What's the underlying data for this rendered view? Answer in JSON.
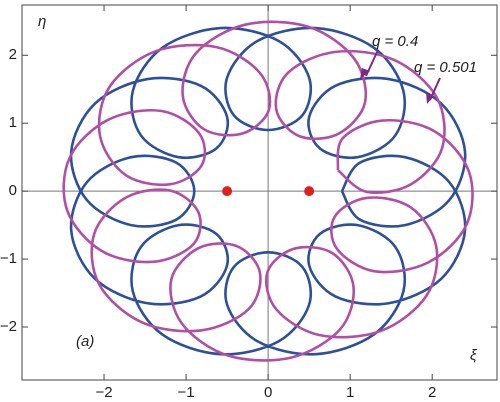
{
  "chart_data": {
    "type": "line",
    "series": [
      {
        "name": "q = 0.4",
        "color": "#2c4f9e",
        "x": [
          0.9,
          1.12,
          1.67,
          2.21,
          2.4,
          2.11,
          1.47,
          0.82,
          0.5,
          0.63,
          1.09,
          1.55,
          1.65,
          1.29,
          0.58,
          -0.13,
          -0.5,
          -0.42,
          0,
          0.42,
          0.5,
          0.13,
          -0.58,
          -1.29,
          -1.65,
          -1.55,
          -1.09,
          -0.63,
          -0.5,
          -0.82,
          -1.47,
          -2.11,
          -2.4,
          -2.21,
          -1.67,
          -1.12,
          -0.9,
          -1.12,
          -1.67,
          -2.21,
          -2.4,
          -2.11,
          -1.47,
          -0.82,
          -0.5,
          -0.63,
          -1.09,
          -1.55,
          -1.65,
          -1.29,
          -0.58,
          0.13,
          0.5,
          0.42,
          0,
          -0.42,
          -0.5,
          -0.13,
          0.58,
          1.29,
          1.65,
          1.55,
          1.09,
          0.63,
          0.5,
          0.82,
          1.47,
          2.11,
          2.4,
          2.21,
          1.67,
          1.12,
          0.9
        ],
        "y": [
          0,
          -0.42,
          -0.5,
          -0.13,
          0.58,
          1.29,
          1.65,
          1.55,
          1.09,
          0.63,
          0.5,
          0.82,
          1.47,
          2.11,
          2.4,
          2.21,
          1.67,
          1.12,
          0.9,
          1.12,
          1.67,
          2.21,
          2.4,
          2.11,
          1.47,
          0.82,
          0.5,
          0.63,
          1.09,
          1.55,
          1.65,
          1.29,
          0.58,
          -0.13,
          -0.5,
          -0.42,
          0,
          0.42,
          0.5,
          0.13,
          -0.58,
          -1.29,
          -1.65,
          -1.55,
          -1.09,
          -0.63,
          -0.5,
          -0.82,
          -1.47,
          -2.11,
          -2.4,
          -2.21,
          -1.67,
          -1.12,
          -0.9,
          -1.12,
          -1.67,
          -2.21,
          -2.4,
          -2.11,
          -1.47,
          -0.82,
          -0.5,
          -0.63,
          -1.09,
          -1.55,
          -1.65,
          -1.29,
          -0.58,
          0.13,
          0.5,
          0.42,
          0
        ]
      },
      {
        "name": "q = 0.501",
        "color": "#b24ea6",
        "x": [
          0.85,
          1.2,
          1.74,
          2.12,
          2.06,
          1.54,
          0.82,
          0.24,
          0.1,
          0.38,
          0.85,
          1.18,
          1.05,
          0.49,
          -0.28,
          -0.88,
          -1.04,
          -0.78,
          -0.31,
          0.01,
          -0.1,
          -0.63,
          -1.37,
          -1.93,
          -2.05,
          -1.74,
          -1.2,
          -0.81,
          -0.84,
          -1.3,
          -1.95,
          -2.42,
          -2.45,
          -2.03,
          -1.4,
          -0.91,
          -0.85,
          -1.2,
          -1.74,
          -2.12,
          -2.06,
          -1.54,
          -0.82,
          -0.24,
          -0.1,
          -0.38,
          -0.85,
          -1.18,
          -1.05,
          -0.49,
          0.28,
          0.88,
          1.04,
          0.78,
          0.31,
          -0.01,
          0.1,
          0.63,
          1.37,
          1.93,
          2.05,
          1.74,
          1.2,
          0.81,
          0.84,
          1.3,
          1.95,
          2.42,
          2.45,
          2.03,
          1.4,
          0.91,
          0.85
        ],
        "y": [
          0.31,
          -0.01,
          0.1,
          0.63,
          1.37,
          1.93,
          2.05,
          1.74,
          1.2,
          0.81,
          0.84,
          1.3,
          1.95,
          2.42,
          2.45,
          2.03,
          1.4,
          0.91,
          0.85,
          1.2,
          1.74,
          2.12,
          2.06,
          1.54,
          0.82,
          0.24,
          0.1,
          0.38,
          0.85,
          1.18,
          1.05,
          0.49,
          -0.28,
          -0.88,
          -1.04,
          -0.78,
          -0.31,
          0.01,
          -0.1,
          -0.63,
          -1.37,
          -1.93,
          -2.05,
          -1.74,
          -1.2,
          -0.81,
          -0.84,
          -1.3,
          -1.95,
          -2.42,
          -2.45,
          -2.03,
          -1.4,
          -0.91,
          -0.85,
          -1.2,
          -1.74,
          -2.12,
          -2.06,
          -1.54,
          -0.82,
          -0.24,
          -0.1,
          -0.38,
          -0.85,
          -1.18,
          -1.05,
          -0.49,
          0.28,
          0.88,
          1.04,
          0.78,
          0.31
        ]
      }
    ],
    "points": {
      "x": [
        -0.5,
        0.5
      ],
      "y": [
        0,
        0
      ],
      "color": "#e0201c"
    },
    "xlim": [
      -3,
      2.79
    ],
    "ylim": [
      -2.78,
      2.74
    ],
    "xticks": [
      {
        "value": -2,
        "label": "−2"
      },
      {
        "value": -1,
        "label": "−1"
      },
      0,
      1,
      2
    ],
    "yticks": [
      {
        "value": -2,
        "label": "−2"
      },
      {
        "value": -1,
        "label": "−1"
      },
      0,
      1,
      2
    ],
    "xlabel": "ξ",
    "ylabel": "η",
    "annotation": "(a)"
  }
}
